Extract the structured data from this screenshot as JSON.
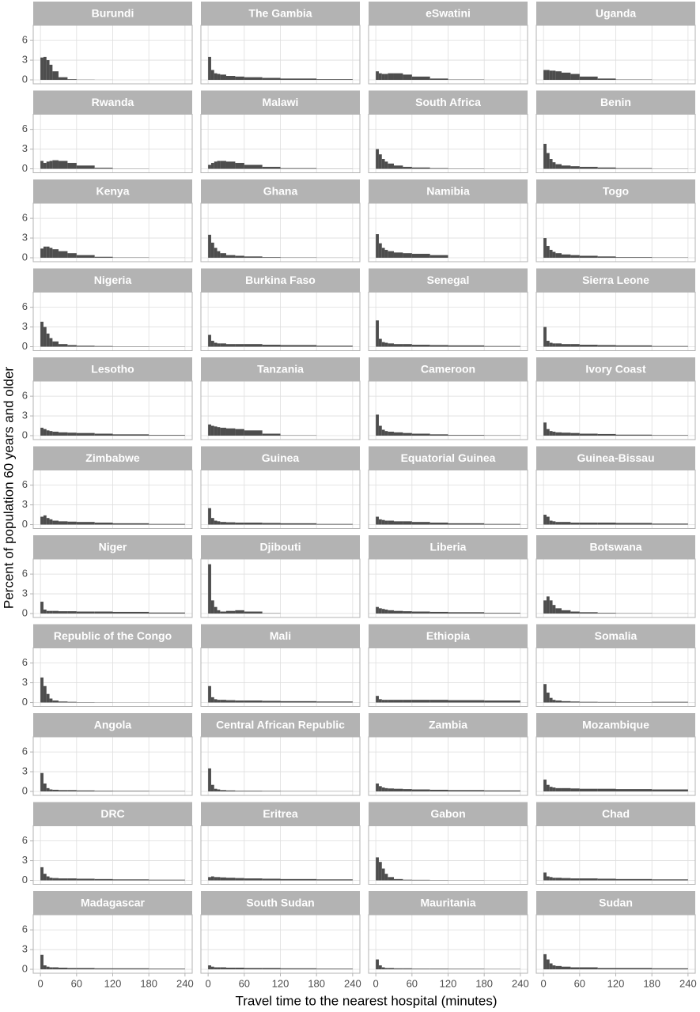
{
  "chart_data": {
    "type": "histogram",
    "xlabel": "Travel time to the nearest hospital (minutes)",
    "ylabel": "Percent of population 60 years and older",
    "color": "#4d4d4d",
    "grid": true,
    "bins": [
      0,
      5,
      10,
      15,
      20,
      30,
      45,
      60,
      90,
      120,
      180,
      240
    ],
    "xlim": [
      -12,
      252
    ],
    "xticks": [
      0,
      60,
      120,
      180,
      240
    ],
    "ylim": [
      -0.6,
      8.3
    ],
    "yticks": [
      0,
      3,
      6
    ],
    "facets": [
      {
        "title": "Burundi",
        "values": [
          3.4,
          3.5,
          3.0,
          2.3,
          1.3,
          0.4,
          0.1,
          0.03,
          0.01,
          0,
          0
        ]
      },
      {
        "title": "The Gambia",
        "values": [
          3.5,
          1.5,
          1.0,
          0.9,
          0.8,
          0.6,
          0.5,
          0.4,
          0.3,
          0.2,
          0.1
        ]
      },
      {
        "title": "eSwatini",
        "values": [
          1.3,
          1.0,
          0.9,
          0.9,
          1.0,
          1.0,
          0.8,
          0.5,
          0.2,
          0.05,
          0.01
        ]
      },
      {
        "title": "Uganda",
        "values": [
          1.5,
          1.5,
          1.4,
          1.4,
          1.3,
          1.1,
          0.9,
          0.5,
          0.2,
          0.05,
          0.01
        ]
      },
      {
        "title": "Rwanda",
        "values": [
          1.2,
          0.9,
          1.1,
          1.2,
          1.3,
          1.2,
          0.9,
          0.5,
          0.15,
          0.03,
          0
        ]
      },
      {
        "title": "Malawi",
        "values": [
          0.6,
          0.9,
          1.1,
          1.2,
          1.2,
          1.1,
          0.9,
          0.6,
          0.3,
          0.1,
          0.02
        ]
      },
      {
        "title": "South Africa",
        "values": [
          3.0,
          2.2,
          1.5,
          1.1,
          0.8,
          0.5,
          0.3,
          0.2,
          0.1,
          0.05,
          0.02
        ]
      },
      {
        "title": "Benin",
        "values": [
          3.8,
          2.4,
          1.5,
          1.0,
          0.7,
          0.5,
          0.4,
          0.3,
          0.2,
          0.1,
          0.03
        ]
      },
      {
        "title": "Kenya",
        "values": [
          1.4,
          1.7,
          1.7,
          1.5,
          1.3,
          1.0,
          0.7,
          0.4,
          0.15,
          0.05,
          0.01
        ]
      },
      {
        "title": "Ghana",
        "values": [
          3.5,
          2.3,
          1.5,
          1.0,
          0.7,
          0.4,
          0.3,
          0.2,
          0.1,
          0.05,
          0.02
        ]
      },
      {
        "title": "Namibia",
        "values": [
          3.6,
          2.2,
          1.5,
          1.2,
          1.0,
          0.8,
          0.7,
          0.6,
          0.4,
          0,
          0
        ]
      },
      {
        "title": "Togo",
        "values": [
          3.0,
          1.8,
          1.2,
          0.9,
          0.7,
          0.5,
          0.4,
          0.3,
          0.2,
          0.1,
          0.05
        ]
      },
      {
        "title": "Nigeria",
        "values": [
          3.8,
          3.0,
          2.0,
          1.3,
          0.8,
          0.4,
          0.25,
          0.15,
          0.1,
          0.05,
          0.03
        ]
      },
      {
        "title": "Burkina Faso",
        "values": [
          1.8,
          0.9,
          0.6,
          0.5,
          0.5,
          0.4,
          0.4,
          0.4,
          0.3,
          0.25,
          0.15
        ]
      },
      {
        "title": "Senegal",
        "values": [
          4.0,
          1.2,
          0.7,
          0.6,
          0.5,
          0.4,
          0.4,
          0.3,
          0.25,
          0.2,
          0.1
        ]
      },
      {
        "title": "Sierra Leone",
        "values": [
          3.0,
          0.9,
          0.6,
          0.5,
          0.5,
          0.4,
          0.4,
          0.3,
          0.25,
          0.2,
          0.1
        ]
      },
      {
        "title": "Lesotho",
        "values": [
          1.2,
          1.0,
          0.8,
          0.7,
          0.6,
          0.5,
          0.45,
          0.4,
          0.3,
          0.2,
          0.1
        ]
      },
      {
        "title": "Tanzania",
        "values": [
          1.7,
          1.5,
          1.4,
          1.3,
          1.2,
          1.1,
          1.0,
          0.8,
          0.3,
          0.05,
          0
        ]
      },
      {
        "title": "Cameroon",
        "values": [
          3.2,
          1.5,
          0.9,
          0.7,
          0.6,
          0.5,
          0.4,
          0.3,
          0.2,
          0.1,
          0.05
        ]
      },
      {
        "title": "Ivory Coast",
        "values": [
          2.0,
          1.0,
          0.7,
          0.6,
          0.5,
          0.45,
          0.4,
          0.3,
          0.25,
          0.15,
          0.08
        ]
      },
      {
        "title": "Zimbabwe",
        "values": [
          1.2,
          1.4,
          1.0,
          0.8,
          0.6,
          0.5,
          0.45,
          0.4,
          0.3,
          0.2,
          0.1
        ]
      },
      {
        "title": "Guinea",
        "values": [
          2.5,
          1.0,
          0.6,
          0.5,
          0.4,
          0.35,
          0.3,
          0.3,
          0.25,
          0.2,
          0.1
        ]
      },
      {
        "title": "Equatorial Guinea",
        "values": [
          1.2,
          0.8,
          0.7,
          0.6,
          0.6,
          0.5,
          0.5,
          0.4,
          0.3,
          0.2,
          0.1
        ]
      },
      {
        "title": "Guinea-Bissau",
        "values": [
          1.5,
          1.2,
          0.6,
          0.5,
          0.4,
          0.4,
          0.3,
          0.3,
          0.3,
          0.25,
          0.15
        ]
      },
      {
        "title": "Niger",
        "values": [
          1.8,
          0.6,
          0.4,
          0.4,
          0.4,
          0.35,
          0.35,
          0.3,
          0.3,
          0.25,
          0.15
        ]
      },
      {
        "title": "Djibouti",
        "values": [
          7.5,
          2.0,
          1.0,
          0.5,
          0.3,
          0.4,
          0.5,
          0.3,
          0.05,
          0,
          0
        ]
      },
      {
        "title": "Liberia",
        "values": [
          1.0,
          0.8,
          0.7,
          0.6,
          0.5,
          0.4,
          0.35,
          0.3,
          0.25,
          0.2,
          0.1
        ]
      },
      {
        "title": "Botswana",
        "values": [
          2.0,
          2.6,
          2.0,
          1.3,
          0.8,
          0.5,
          0.3,
          0.2,
          0.1,
          0.05,
          0.02
        ]
      },
      {
        "title": "Republic of the Congo",
        "values": [
          3.8,
          2.5,
          1.3,
          0.6,
          0.3,
          0.15,
          0.1,
          0.05,
          0.03,
          0.02,
          0.01
        ]
      },
      {
        "title": "Mali",
        "values": [
          2.5,
          0.8,
          0.5,
          0.4,
          0.4,
          0.35,
          0.3,
          0.3,
          0.25,
          0.2,
          0.15
        ]
      },
      {
        "title": "Ethiopia",
        "values": [
          1.0,
          0.5,
          0.4,
          0.4,
          0.4,
          0.4,
          0.4,
          0.4,
          0.4,
          0.35,
          0.3
        ]
      },
      {
        "title": "Somalia",
        "values": [
          2.8,
          1.5,
          0.7,
          0.4,
          0.3,
          0.2,
          0.15,
          0.1,
          0.08,
          0.05,
          0.1
        ]
      },
      {
        "title": "Angola",
        "values": [
          2.8,
          1.2,
          0.5,
          0.3,
          0.25,
          0.2,
          0.2,
          0.15,
          0.1,
          0.08,
          0.05
        ]
      },
      {
        "title": "Central African Republic",
        "values": [
          3.5,
          1.0,
          0.4,
          0.3,
          0.2,
          0.15,
          0.1,
          0.1,
          0.08,
          0.05,
          0.03
        ]
      },
      {
        "title": "Zambia",
        "values": [
          1.2,
          0.8,
          0.6,
          0.5,
          0.45,
          0.4,
          0.35,
          0.3,
          0.25,
          0.2,
          0.15
        ]
      },
      {
        "title": "Mozambique",
        "values": [
          1.8,
          1.0,
          0.7,
          0.6,
          0.5,
          0.5,
          0.45,
          0.4,
          0.4,
          0.35,
          0.3
        ]
      },
      {
        "title": "DRC",
        "values": [
          2.0,
          1.0,
          0.6,
          0.4,
          0.35,
          0.3,
          0.3,
          0.25,
          0.2,
          0.15,
          0.1
        ]
      },
      {
        "title": "Eritrea",
        "values": [
          0.5,
          0.6,
          0.5,
          0.5,
          0.45,
          0.4,
          0.35,
          0.3,
          0.25,
          0.2,
          0.15
        ]
      },
      {
        "title": "Gabon",
        "values": [
          3.5,
          2.8,
          1.8,
          1.0,
          0.5,
          0.2,
          0.1,
          0.08,
          0.05,
          0.03,
          0.01
        ]
      },
      {
        "title": "Chad",
        "values": [
          1.2,
          0.6,
          0.5,
          0.4,
          0.4,
          0.35,
          0.3,
          0.3,
          0.25,
          0.2,
          0.15
        ]
      },
      {
        "title": "Madagascar",
        "values": [
          2.2,
          0.6,
          0.4,
          0.3,
          0.3,
          0.25,
          0.2,
          0.2,
          0.15,
          0.15,
          0.1
        ]
      },
      {
        "title": "South Sudan",
        "values": [
          0.6,
          0.4,
          0.3,
          0.3,
          0.3,
          0.25,
          0.25,
          0.2,
          0.2,
          0.15,
          0.1
        ]
      },
      {
        "title": "Mauritania",
        "values": [
          1.5,
          0.6,
          0.3,
          0.2,
          0.2,
          0.15,
          0.15,
          0.1,
          0.1,
          0.08,
          0.05
        ]
      },
      {
        "title": "Sudan",
        "values": [
          2.3,
          1.5,
          0.9,
          0.6,
          0.5,
          0.4,
          0.3,
          0.3,
          0.2,
          0.2,
          0.15
        ]
      }
    ]
  }
}
